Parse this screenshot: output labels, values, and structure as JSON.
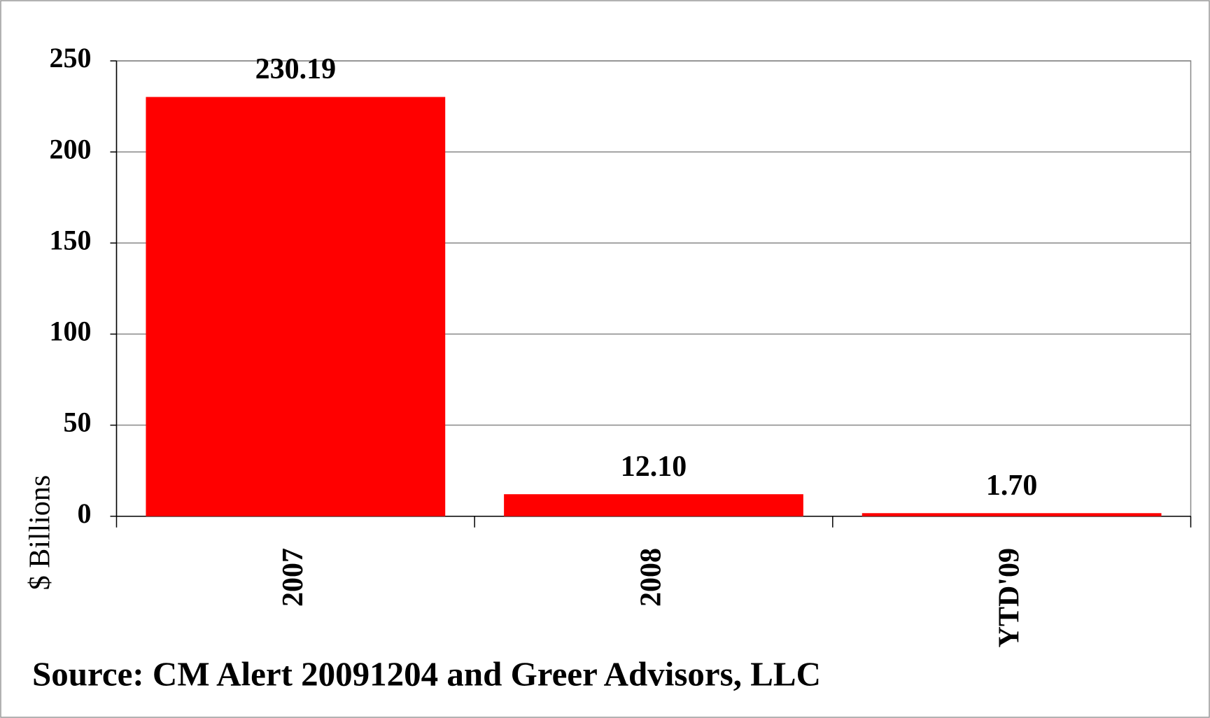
{
  "chart_data": {
    "type": "bar",
    "y_label": "$ Billions",
    "categories": [
      "2007",
      "2008",
      "YTD'09"
    ],
    "values": [
      230.19,
      12.1,
      1.7
    ],
    "value_labels": [
      "230.19",
      "12.10",
      "1.70"
    ],
    "color": "#ff0000",
    "ylim": [
      0,
      250
    ],
    "yticks": [
      0,
      50,
      100,
      150,
      200,
      250
    ],
    "grid": true,
    "source": "Source: CM Alert 20091204 and Greer Advisors, LLC"
  }
}
